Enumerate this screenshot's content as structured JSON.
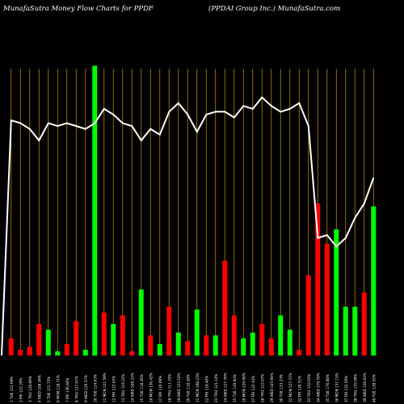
{
  "header": {
    "left_title": "MunafaSutra  Money Flow  Charts for PPDF",
    "right_title": "(PPDAI Group Inc.) MunafaSutra.com"
  },
  "colors": {
    "background": "#000000",
    "grid": "#b8860b",
    "up_bar": "#00ff00",
    "down_bar": "#ff0000",
    "line": "#ffffff"
  },
  "chart_data": {
    "type": "bar",
    "title": "MunafaSutra  Money Flow  Charts for PPDF",
    "subtitle": "(PPDAI Group Inc.) MunafaSutra.com",
    "categories": [
      "1 TUE 122.69%",
      "2 FRI 122.29%",
      "3 THU 128.89%",
      "4 WED 108.36%",
      "5 TUE 121.75%",
      "6 MON 128.71%",
      "7 FRI 136.84%",
      "8 THU 127.07%",
      "9 WED 126.57%",
      "10 TUE 124.63%",
      "11 MON 121.59%",
      "12 FRI 122.65%",
      "13 THU 119.22%",
      "14 WED 108.22%",
      "15 TUE 118.26%",
      "16 MON 136.42%",
      "17 FRI 116.09%",
      "18 THU 111.25%",
      "19 WED 123.16%",
      "20 TUE 110.28%",
      "21 MON 108.23%",
      "22 FRI 118.40%",
      "23 THU 121.14%",
      "24 WED 127.76%",
      "25 TUE 120.94%",
      "26 MON 129.60%",
      "27 FRI 122.43%",
      "28 THU 122.67%",
      "29 WED 145.94%",
      "30 TUE 133.23%",
      "31 MON 127.57%",
      "32 FRI 126.51%",
      "33 THU 110.93%",
      "34 WED 179.70%",
      "35 TUE 176.08%",
      "36 MON 137.15%",
      "37 FRI 132.59%",
      "38 THU 135.60%",
      "39 WED 136.62%",
      "40 TUE 138.55%"
    ],
    "bar_direction": [
      "down",
      "down",
      "down",
      "down",
      "up",
      "up",
      "down",
      "down",
      "up",
      "up",
      "down",
      "up",
      "down",
      "down",
      "up",
      "down",
      "up",
      "down",
      "up",
      "down",
      "up",
      "down",
      "up",
      "down",
      "down",
      "up",
      "up",
      "down",
      "down",
      "up",
      "up",
      "down",
      "down",
      "down",
      "down",
      "up",
      "up",
      "up",
      "down",
      "up"
    ],
    "series": [
      {
        "values": [
          6,
          2,
          3,
          11,
          9,
          1.5,
          4,
          12,
          2,
          101,
          15,
          11,
          14,
          1.5,
          23,
          7,
          4,
          17,
          8,
          5,
          16,
          7,
          7,
          33,
          14,
          6,
          8,
          11,
          6,
          14,
          9,
          2,
          28,
          53,
          39,
          44,
          17,
          17,
          22,
          52
        ]
      },
      {
        "values": [
          82,
          81,
          79,
          75,
          81,
          80,
          81,
          80,
          79,
          81,
          86,
          84,
          81,
          80,
          75,
          79,
          77,
          85,
          88,
          84,
          78,
          84,
          85,
          85,
          83,
          87,
          86,
          90,
          87,
          85,
          86,
          88,
          80,
          41,
          42,
          38,
          41,
          48,
          53,
          62
        ]
      }
    ],
    "ylim": [
      0,
      100
    ],
    "grid": true,
    "legend": "none"
  }
}
